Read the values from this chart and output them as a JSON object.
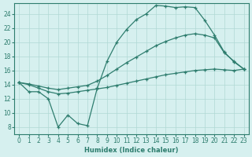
{
  "xlabel": "Humidex (Indice chaleur)",
  "background_color": "#d6f0ef",
  "line_color": "#2e7d6e",
  "grid_color": "#b0d8d4",
  "xlim": [
    -0.5,
    23.5
  ],
  "ylim": [
    7,
    25.5
  ],
  "yticks": [
    8,
    10,
    12,
    14,
    16,
    18,
    20,
    22,
    24
  ],
  "xticks": [
    0,
    1,
    2,
    3,
    4,
    5,
    6,
    7,
    8,
    9,
    10,
    11,
    12,
    13,
    14,
    15,
    16,
    17,
    18,
    19,
    20,
    21,
    22,
    23
  ],
  "series1_jagged": {
    "x": [
      0,
      1,
      2,
      3,
      4,
      5,
      6,
      7,
      8,
      9,
      10,
      11,
      12,
      13,
      14,
      15,
      16,
      17,
      18,
      19,
      20,
      21,
      22,
      23
    ],
    "y": [
      14.3,
      13.0,
      13.0,
      12.0,
      8.0,
      9.7,
      8.5,
      8.2,
      13.5,
      17.3,
      20.0,
      21.8,
      23.2,
      24.0,
      25.2,
      25.1,
      24.9,
      25.0,
      24.9,
      23.1,
      21.0,
      18.6,
      17.2,
      16.2
    ]
  },
  "series2_upper": {
    "x": [
      0,
      1,
      2,
      3,
      4,
      5,
      6,
      7,
      8,
      9,
      10,
      11,
      12,
      13,
      14,
      15,
      16,
      17,
      18,
      19,
      20,
      21,
      22,
      23
    ],
    "y": [
      14.3,
      14.1,
      13.8,
      13.5,
      13.3,
      13.5,
      13.7,
      13.9,
      14.5,
      15.3,
      16.2,
      17.1,
      17.9,
      18.7,
      19.5,
      20.1,
      20.6,
      21.0,
      21.2,
      21.0,
      20.6,
      18.5,
      17.3,
      16.2
    ]
  },
  "series3_lower": {
    "x": [
      0,
      1,
      2,
      3,
      4,
      5,
      6,
      7,
      8,
      9,
      10,
      11,
      12,
      13,
      14,
      15,
      16,
      17,
      18,
      19,
      20,
      21,
      22,
      23
    ],
    "y": [
      14.3,
      14.0,
      13.5,
      13.0,
      12.7,
      12.8,
      13.0,
      13.2,
      13.4,
      13.6,
      13.9,
      14.2,
      14.5,
      14.8,
      15.1,
      15.4,
      15.6,
      15.8,
      16.0,
      16.1,
      16.2,
      16.1,
      16.0,
      16.2
    ]
  }
}
